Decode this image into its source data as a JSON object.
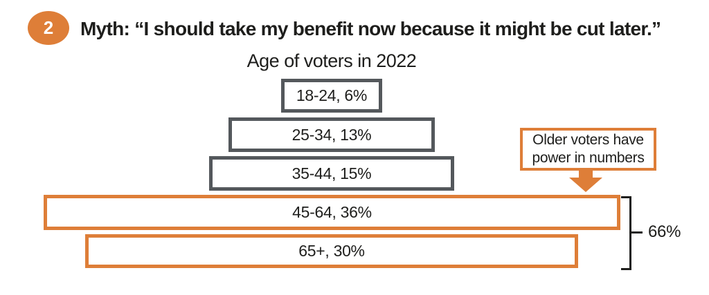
{
  "page": {
    "badge_number": "2",
    "heading": "Myth: “I should take my benefit now because it might be cut later.”"
  },
  "chart_data": {
    "type": "bar",
    "title": "Age of voters in 2022",
    "orientation": "horizontal_centered_pyramid",
    "categories": [
      "18-24",
      "25-34",
      "35-44",
      "45-64",
      "65+"
    ],
    "values": [
      6,
      13,
      15,
      36,
      30
    ],
    "unit": "%",
    "bars": [
      {
        "category": "18-24",
        "pct": 6,
        "label": "18-24, 6%",
        "highlight": false
      },
      {
        "category": "25-34",
        "pct": 13,
        "label": "25-34, 13%",
        "highlight": false
      },
      {
        "category": "35-44",
        "pct": 15,
        "label": "35-44, 15%",
        "highlight": false
      },
      {
        "category": "45-64",
        "pct": 36,
        "label": "45-64, 36%",
        "highlight": true
      },
      {
        "category": "65+",
        "pct": 30,
        "label": "65+, 30%",
        "highlight": true
      }
    ],
    "annotation": {
      "line1": "Older voters have",
      "line2": "power in numbers"
    },
    "bracket": {
      "label": "66%",
      "covers": [
        "45-64",
        "65+"
      ]
    },
    "legend_position": "none",
    "grid": false
  },
  "colors": {
    "highlight_orange": "#DE7E38",
    "bar_gray": "#54585C",
    "text": "#1E1E1C",
    "background": "#FFFFFF"
  }
}
